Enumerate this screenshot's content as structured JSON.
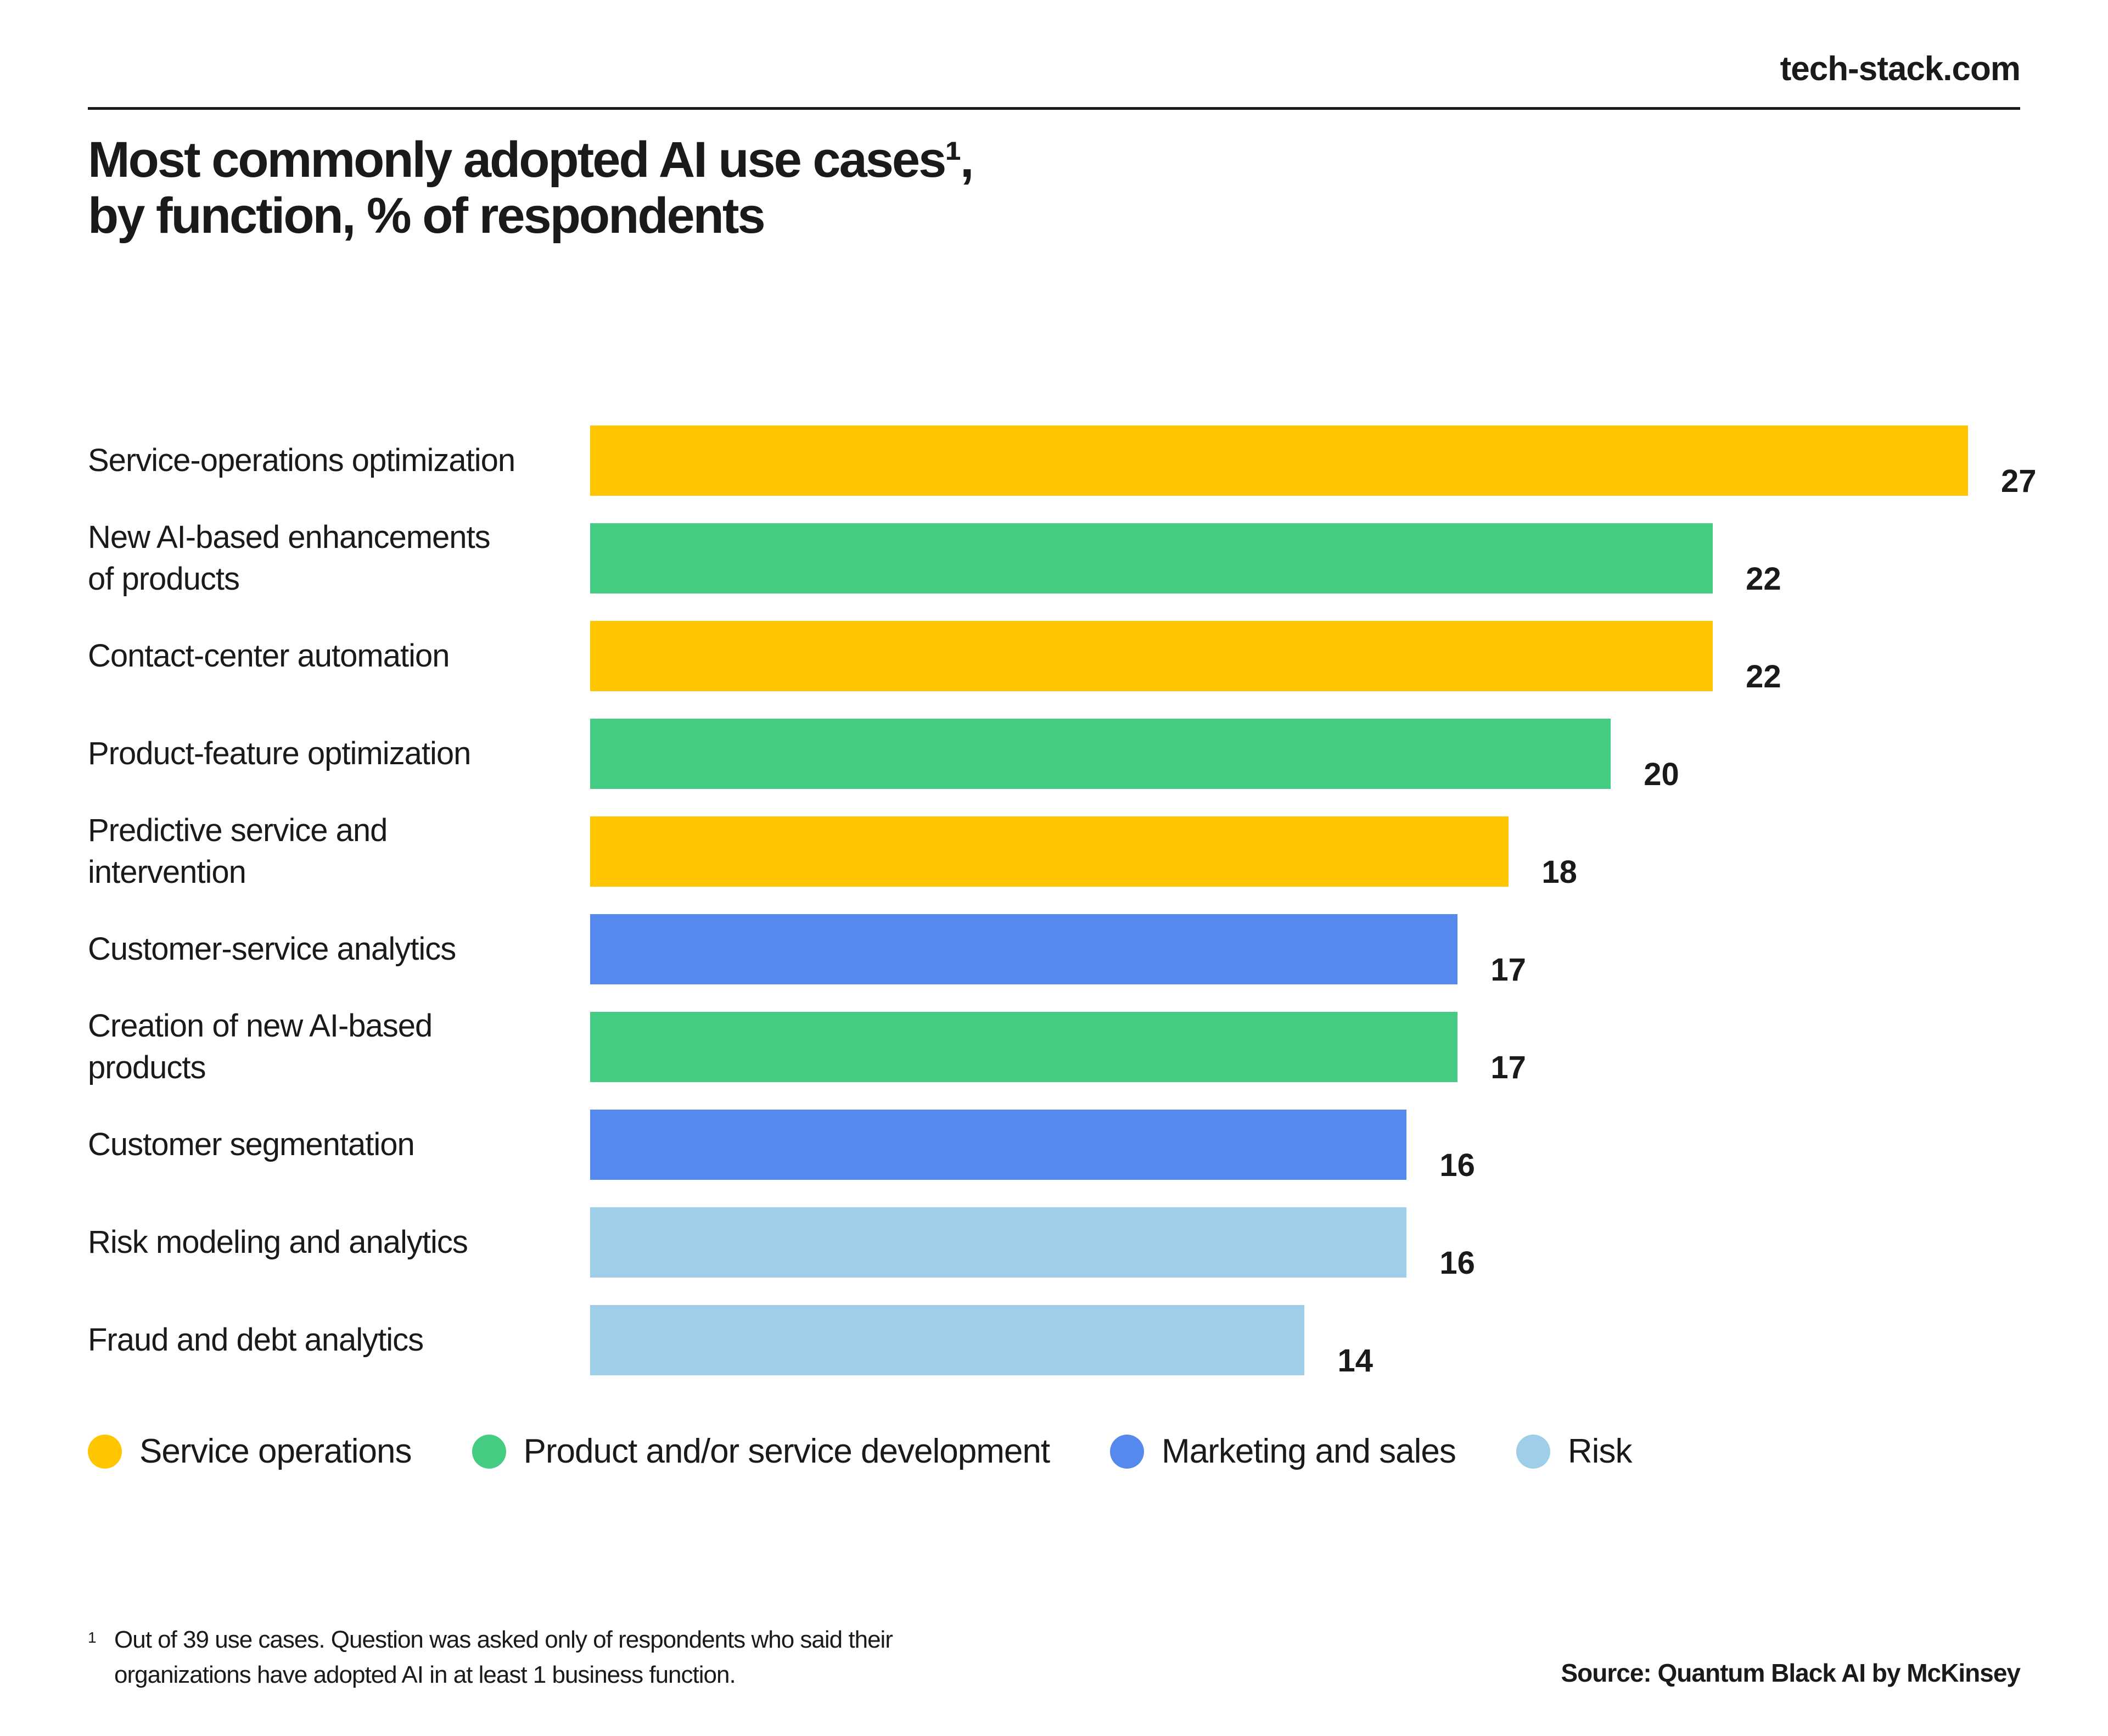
{
  "header": {
    "brand": "tech-stack.com",
    "title_line1": "Most commonly adopted AI use cases¹,",
    "title_line2": "by function, % of respondents"
  },
  "chart_data": {
    "type": "bar",
    "orientation": "horizontal",
    "categories": [
      "Service-operations optimization",
      "New AI-based enhancements of products",
      "Contact-center automation",
      "Product-feature optimization",
      "Predictive service and intervention",
      "Customer-service analytics",
      "Creation of new AI-based products",
      "Customer segmentation",
      "Risk modeling and analytics",
      "Fraud and debt analytics"
    ],
    "category_lines": [
      [
        "Service-operations optimization"
      ],
      [
        "New AI-based enhancements",
        "of products"
      ],
      [
        "Contact-center automation"
      ],
      [
        "Product-feature optimization"
      ],
      [
        "Predictive service and",
        "intervention"
      ],
      [
        "Customer-service analytics"
      ],
      [
        "Creation of new AI-based",
        "products"
      ],
      [
        "Customer segmentation"
      ],
      [
        "Risk modeling and analytics"
      ],
      [
        "Fraud and debt analytics"
      ]
    ],
    "values": [
      27,
      22,
      22,
      20,
      18,
      17,
      17,
      16,
      16,
      14
    ],
    "groups": [
      "Service operations",
      "Product and/or service development",
      "Service operations",
      "Product and/or service development",
      "Service operations",
      "Marketing and sales",
      "Product and/or service development",
      "Marketing and sales",
      "Risk",
      "Risk"
    ],
    "legend": [
      {
        "name": "Service operations",
        "color": "#FFC600"
      },
      {
        "name": "Product and/or service development",
        "color": "#44CC82"
      },
      {
        "name": "Marketing and sales",
        "color": "#5589EE"
      },
      {
        "name": "Risk",
        "color": "#9ECEEA"
      }
    ],
    "xlim": [
      0,
      27
    ],
    "data_labels": true,
    "grid": false,
    "legend_position": "bottom"
  },
  "footnote": {
    "mark": "1",
    "line1": "Out of 39 use cases. Question was asked only of respondents who said their",
    "line2": "organizations have adopted AI in at least 1 business function."
  },
  "source": "Source: Quantum Black AI by McKinsey"
}
